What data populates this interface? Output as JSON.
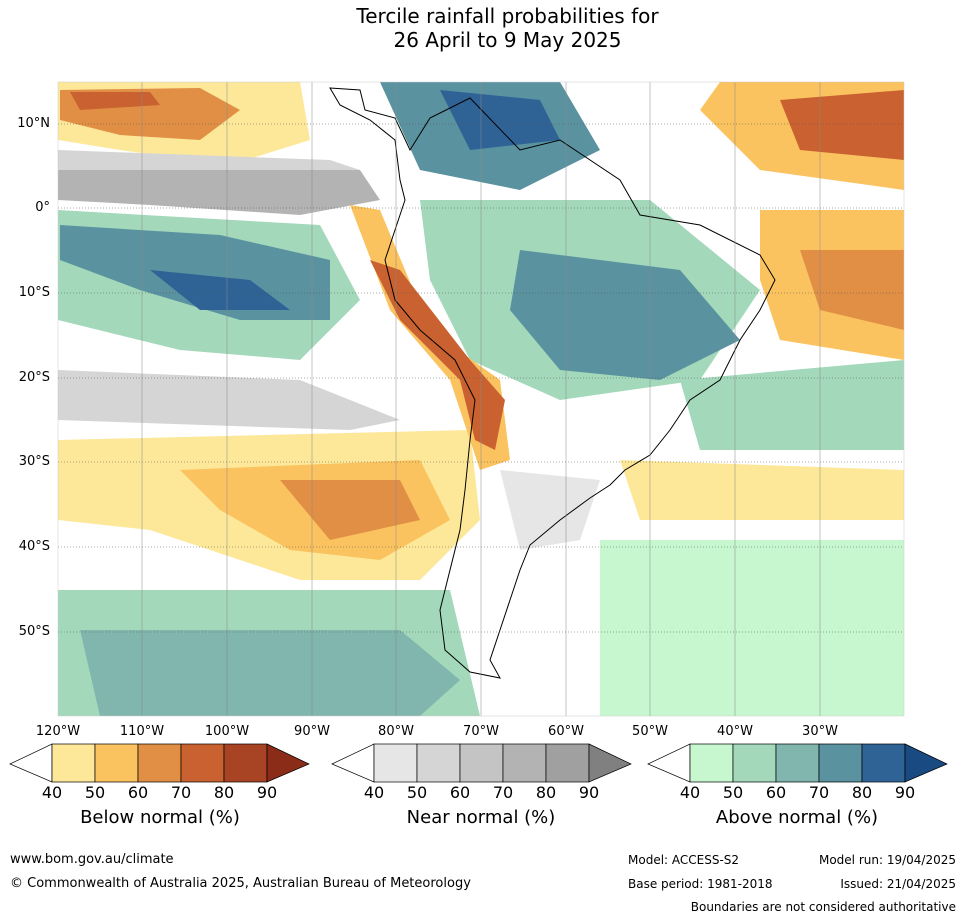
{
  "title": {
    "line1": "Tercile rainfall probabilities for",
    "line2": "26 April to 9 May 2025"
  },
  "map": {
    "lat_labels": [
      "10°N",
      "0°",
      "10°S",
      "20°S",
      "30°S",
      "40°S",
      "50°S"
    ],
    "lon_labels": [
      "120°W",
      "110°W",
      "100°W",
      "90°W",
      "80°W",
      "70°W",
      "60°W",
      "50°W",
      "40°W",
      "30°W"
    ]
  },
  "legend": {
    "below": {
      "title": "Below normal (%)",
      "ticks": [
        "40",
        "50",
        "60",
        "70",
        "80",
        "90"
      ],
      "colors": [
        "#fde89a",
        "#fbc35f",
        "#e08f45",
        "#c96230",
        "#a84424",
        "#8b2c18"
      ]
    },
    "near": {
      "title": "Near normal (%)",
      "ticks": [
        "40",
        "50",
        "60",
        "70",
        "80",
        "90"
      ],
      "colors": [
        "#e6e6e6",
        "#d5d5d5",
        "#c4c4c4",
        "#b3b3b3",
        "#a0a0a0",
        "#808080"
      ]
    },
    "above": {
      "title": "Above normal (%)",
      "ticks": [
        "40",
        "50",
        "60",
        "70",
        "80",
        "90"
      ],
      "colors": [
        "#c6f7cf",
        "#a3d8bb",
        "#80b6ad",
        "#5a92a0",
        "#2f6396",
        "#1a4a82"
      ]
    }
  },
  "footer": {
    "website": "www.bom.gov.au/climate",
    "copyright": "© Commonwealth of Australia 2025, Australian Bureau of Meteorology",
    "model": "Model: ACCESS-S2",
    "model_run": "Model run: 19/04/2025",
    "base_period": "Base period: 1981-2018",
    "issued": "Issued: 21/04/2025",
    "disclaimer": "Boundaries are not considered authoritative"
  }
}
